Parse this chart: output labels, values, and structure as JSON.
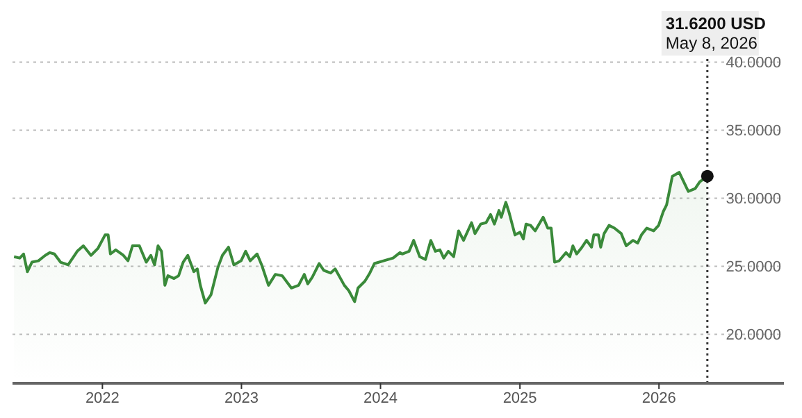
{
  "chart_data": {
    "type": "area",
    "x": [
      "2021-05-14",
      "2021-05-29",
      "2021-06-08",
      "2021-06-18",
      "2021-06-30",
      "2021-07-17",
      "2021-08-04",
      "2021-08-16",
      "2021-08-28",
      "2021-09-13",
      "2021-10-03",
      "2021-10-27",
      "2021-11-12",
      "2021-12-02",
      "2021-12-20",
      "2022-01-08",
      "2022-01-16",
      "2022-01-22",
      "2022-02-05",
      "2022-02-25",
      "2022-03-09",
      "2022-03-21",
      "2022-04-08",
      "2022-04-26",
      "2022-05-08",
      "2022-05-18",
      "2022-05-27",
      "2022-06-05",
      "2022-06-14",
      "2022-06-22",
      "2022-07-08",
      "2022-07-20",
      "2022-08-01",
      "2022-08-13",
      "2022-08-29",
      "2022-09-07",
      "2022-09-15",
      "2022-09-28",
      "2022-10-13",
      "2022-10-31",
      "2022-11-12",
      "2022-11-28",
      "2022-12-12",
      "2022-12-31",
      "2023-01-12",
      "2023-01-24",
      "2023-02-11",
      "2023-02-23",
      "2023-03-13",
      "2023-03-31",
      "2023-04-18",
      "2023-05-12",
      "2023-05-31",
      "2023-06-15",
      "2023-06-24",
      "2023-07-06",
      "2023-07-24",
      "2023-08-05",
      "2023-08-23",
      "2023-09-04",
      "2023-09-28",
      "2023-10-10",
      "2023-10-25",
      "2023-11-03",
      "2023-11-21",
      "2023-12-04",
      "2023-12-16",
      "2024-01-09",
      "2024-02-03",
      "2024-02-21",
      "2024-02-27",
      "2024-03-16",
      "2024-03-28",
      "2024-04-13",
      "2024-04-28",
      "2024-05-12",
      "2024-05-24",
      "2024-06-05",
      "2024-06-15",
      "2024-06-27",
      "2024-07-11",
      "2024-07-24",
      "2024-08-06",
      "2024-08-27",
      "2024-09-05",
      "2024-09-20",
      "2024-10-04",
      "2024-10-16",
      "2024-10-26",
      "2024-11-07",
      "2024-11-13",
      "2024-11-25",
      "2024-12-03",
      "2024-12-19",
      "2025-01-01",
      "2025-01-10",
      "2025-01-17",
      "2025-01-29",
      "2025-02-10",
      "2025-03-03",
      "2025-03-15",
      "2025-03-24",
      "2025-04-02",
      "2025-04-14",
      "2025-05-02",
      "2025-05-12",
      "2025-05-20",
      "2025-05-30",
      "2025-06-13",
      "2025-06-25",
      "2025-07-08",
      "2025-07-14",
      "2025-07-26",
      "2025-08-01",
      "2025-08-10",
      "2025-08-23",
      "2025-09-06",
      "2025-09-24",
      "2025-10-07",
      "2025-10-25",
      "2025-11-06",
      "2025-11-16",
      "2025-11-30",
      "2025-12-18",
      "2025-12-31",
      "2026-01-12",
      "2026-01-21",
      "2026-02-05",
      "2026-02-23",
      "2026-03-19",
      "2026-04-06",
      "2026-04-18",
      "2026-05-08"
    ],
    "series": [
      {
        "color": "#3a8a3a",
        "values": [
          25.7,
          25.6,
          25.9,
          24.6,
          25.3,
          25.4,
          25.8,
          26.0,
          25.9,
          25.3,
          25.1,
          26.1,
          26.5,
          25.8,
          26.3,
          27.3,
          27.3,
          25.9,
          26.2,
          25.8,
          25.4,
          26.5,
          26.5,
          25.3,
          25.8,
          25.1,
          26.5,
          26.1,
          23.6,
          24.3,
          24.1,
          24.3,
          25.3,
          25.8,
          24.6,
          24.8,
          23.6,
          22.3,
          22.9,
          24.9,
          25.8,
          26.4,
          25.1,
          25.4,
          26.1,
          25.4,
          25.9,
          25.1,
          23.6,
          24.4,
          24.3,
          23.4,
          23.6,
          24.4,
          23.7,
          24.2,
          25.2,
          24.7,
          24.5,
          24.8,
          23.6,
          23.2,
          22.4,
          23.4,
          23.9,
          24.5,
          25.2,
          25.4,
          25.6,
          26.0,
          25.9,
          26.1,
          26.9,
          25.7,
          25.5,
          26.9,
          26.1,
          26.2,
          25.6,
          26.1,
          25.7,
          27.6,
          26.9,
          28.2,
          27.4,
          28.1,
          28.2,
          28.8,
          28.1,
          29.1,
          28.6,
          29.7,
          29.0,
          27.3,
          27.5,
          27.0,
          28.1,
          28.0,
          27.6,
          28.6,
          27.8,
          27.8,
          25.3,
          25.4,
          26.0,
          25.7,
          26.5,
          25.9,
          26.4,
          26.9,
          26.4,
          27.3,
          27.3,
          26.4,
          27.4,
          28.0,
          27.8,
          27.4,
          26.5,
          26.9,
          26.7,
          27.3,
          27.8,
          27.6,
          28.0,
          29.0,
          29.5,
          31.6,
          31.9,
          30.5,
          30.7,
          31.2,
          31.62
        ]
      },
      {
        "type": "scatter",
        "color": "#111111",
        "x": [
          "2026-05-08"
        ],
        "values": [
          31.62
        ]
      }
    ],
    "xlim": [
      "2021-05-10",
      "2026-11-25"
    ],
    "xticks": [
      {
        "value": "2022-01-01",
        "label": "2022"
      },
      {
        "value": "2023-01-01",
        "label": "2023"
      },
      {
        "value": "2024-01-01",
        "label": "2024"
      },
      {
        "value": "2025-01-01",
        "label": "2025"
      },
      {
        "value": "2026-01-01",
        "label": "2026"
      }
    ],
    "ylim": [
      16.4,
      41.5
    ],
    "yticks": [
      {
        "value": 20,
        "label": "20.0000"
      },
      {
        "value": 25,
        "label": "25.0000"
      },
      {
        "value": 30,
        "label": "30.0000"
      },
      {
        "value": 35,
        "label": "35.0000"
      },
      {
        "value": 40,
        "label": "40.0000"
      }
    ],
    "grid": "y",
    "ref_lines": [
      {
        "axis": "x",
        "value": "2026-05-08",
        "color": "#333333",
        "line_style": "dotted"
      }
    ],
    "annotations": [
      "31.6200 USD\nMay 8, 2026"
    ]
  }
}
